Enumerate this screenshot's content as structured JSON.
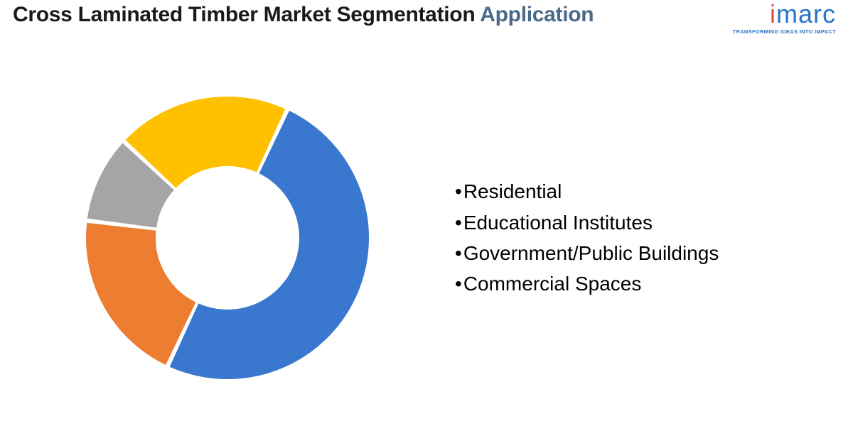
{
  "header": {
    "title_main": "Cross Laminated Timber Market Segmentation",
    "title_accent": "Application",
    "logo_text": "imarc",
    "logo_tagline": "TRANSFORMING IDEAS INTO IMPACT"
  },
  "chart": {
    "type": "donut",
    "outer_radius": 200,
    "inner_radius": 100,
    "background_color": "#ffffff",
    "start_angle_deg": -65,
    "slices": [
      {
        "label": "Residential",
        "value": 50,
        "color": "#3a77cf"
      },
      {
        "label": "Educational Institutes",
        "value": 20,
        "color": "#ed7d31"
      },
      {
        "label": "Government/Public Buildings",
        "value": 10,
        "color": "#a5a5a5"
      },
      {
        "label": "Commercial Spaces",
        "value": 20,
        "color": "#ffc000"
      }
    ],
    "slice_gap_deg": 1.2,
    "stroke_color": "#ffffff",
    "stroke_width": 2
  },
  "legend": {
    "items": [
      "Residential",
      "Educational Institutes",
      "Government/Public Buildings",
      "Commercial Spaces"
    ],
    "fontsize": 28,
    "color": "#000000"
  }
}
